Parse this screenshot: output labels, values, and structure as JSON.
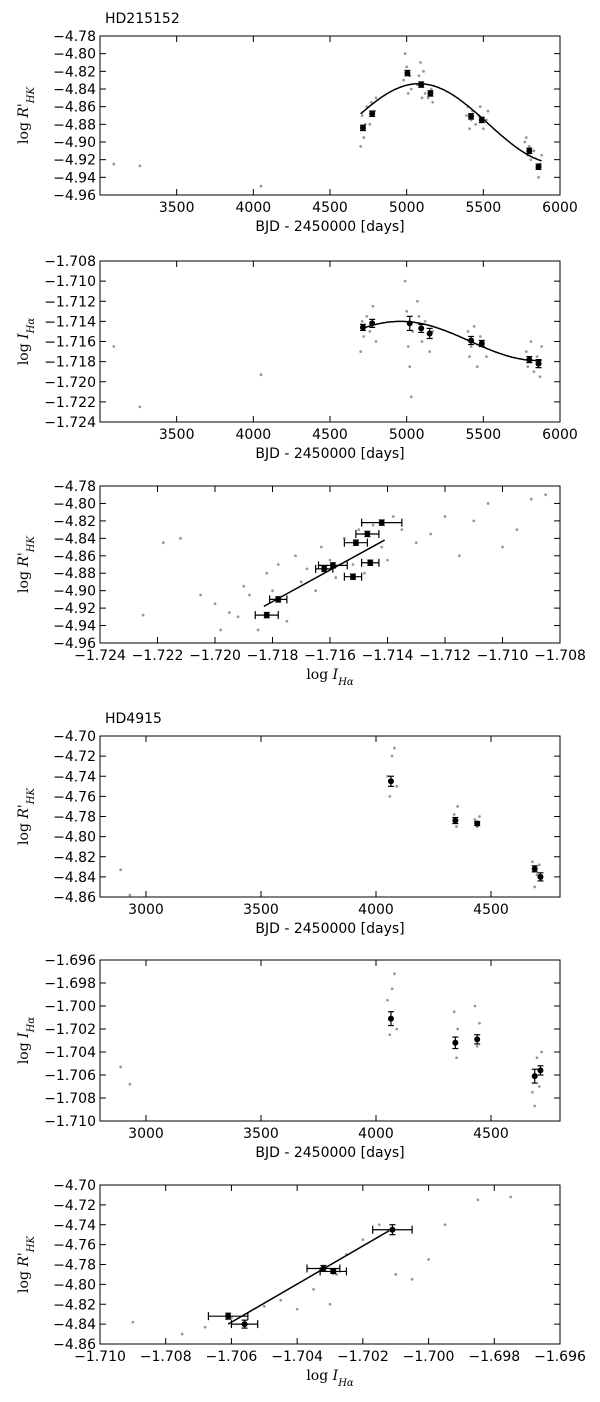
{
  "figure": {
    "star_labels": [
      "HD215152",
      "HD4915"
    ],
    "colors": {
      "points": "#999999",
      "binned": "#000000",
      "fit": "#000000"
    }
  },
  "chart_data": [
    {
      "type": "scatter",
      "star": "HD215152",
      "title": "",
      "xlabel": "BJD - 2450000 [days]",
      "ylabel": "log R'_HK",
      "xlim": [
        3000,
        6000
      ],
      "ylim": [
        -4.96,
        -4.78
      ],
      "xticks": [
        3500,
        4000,
        4500,
        5000,
        5500,
        6000
      ],
      "yticks": [
        -4.96,
        -4.94,
        -4.92,
        -4.9,
        -4.88,
        -4.86,
        -4.84,
        -4.82,
        -4.8,
        -4.78
      ],
      "binned": {
        "x": [
          4715,
          4775,
          5005,
          5095,
          5155,
          5420,
          5490,
          5800,
          5860
        ],
        "y": [
          -4.884,
          -4.868,
          -4.822,
          -4.835,
          -4.845,
          -4.871,
          -4.875,
          -4.91,
          -4.928
        ],
        "yerr": [
          0.003,
          0.003,
          0.003,
          0.003,
          0.003,
          0.003,
          0.003,
          0.003,
          0.003
        ]
      },
      "fit": {
        "type": "sinusoid",
        "x_range": [
          4700,
          5880
        ],
        "peak_x": 5080,
        "peak_y": -4.834,
        "min_y": -4.924,
        "period": 1800
      },
      "scatter": {
        "x": [
          3090,
          3260,
          4050,
          4700,
          4710,
          4720,
          4730,
          4740,
          4760,
          4770,
          4780,
          4790,
          4800,
          4980,
          4990,
          5000,
          5010,
          5020,
          5030,
          5070,
          5080,
          5090,
          5100,
          5110,
          5120,
          5140,
          5160,
          5170,
          5390,
          5400,
          5410,
          5420,
          5430,
          5450,
          5470,
          5480,
          5500,
          5520,
          5530,
          5770,
          5780,
          5790,
          5800,
          5810,
          5830,
          5850,
          5860,
          5870,
          5880
        ],
        "y": [
          -4.925,
          -4.927,
          -4.95,
          -4.905,
          -4.87,
          -4.895,
          -4.88,
          -4.86,
          -4.88,
          -4.855,
          -4.87,
          -4.865,
          -4.85,
          -4.83,
          -4.8,
          -4.815,
          -4.845,
          -4.825,
          -4.84,
          -4.835,
          -4.825,
          -4.81,
          -4.85,
          -4.82,
          -4.845,
          -4.85,
          -4.84,
          -4.855,
          -4.87,
          -4.86,
          -4.885,
          -4.875,
          -4.865,
          -4.88,
          -4.87,
          -4.86,
          -4.885,
          -4.875,
          -4.865,
          -4.9,
          -4.895,
          -4.915,
          -4.905,
          -4.92,
          -4.91,
          -4.93,
          -4.94,
          -4.925,
          -4.915
        ]
      }
    },
    {
      "type": "scatter",
      "star": "HD215152",
      "title": "",
      "xlabel": "BJD - 2450000 [days]",
      "ylabel": "log I_Hα",
      "xlim": [
        3000,
        6000
      ],
      "ylim": [
        -1.724,
        -1.708
      ],
      "xticks": [
        3500,
        4000,
        4500,
        5000,
        5500,
        6000
      ],
      "yticks": [
        -1.724,
        -1.722,
        -1.72,
        -1.718,
        -1.716,
        -1.714,
        -1.712,
        -1.71,
        -1.708
      ],
      "binned": {
        "x": [
          4715,
          4775,
          5020,
          5095,
          5150,
          5420,
          5490,
          5800,
          5860
        ],
        "y": [
          -1.7146,
          -1.7142,
          -1.7142,
          -1.7147,
          -1.7152,
          -1.7159,
          -1.7162,
          -1.7178,
          -1.7182
        ],
        "yerr": [
          0.0003,
          0.0004,
          0.0007,
          0.0004,
          0.0005,
          0.0004,
          0.0003,
          0.0003,
          0.0004
        ]
      },
      "fit": {
        "type": "sinusoid",
        "x_range": [
          4700,
          5880
        ],
        "peak_x": 4960,
        "peak_y": -1.714,
        "min_y": -1.7179,
        "period": 1800
      },
      "scatter": {
        "x": [
          3090,
          3260,
          4050,
          4700,
          4710,
          4720,
          4740,
          4760,
          4780,
          4800,
          4990,
          5000,
          5010,
          5020,
          5030,
          5040,
          5070,
          5080,
          5100,
          5120,
          5150,
          5170,
          5400,
          5410,
          5420,
          5440,
          5460,
          5480,
          5500,
          5520,
          5780,
          5790,
          5810,
          5830,
          5850,
          5870,
          5880
        ],
        "y": [
          -1.7165,
          -1.7225,
          -1.7193,
          -1.717,
          -1.714,
          -1.7155,
          -1.7135,
          -1.715,
          -1.7125,
          -1.716,
          -1.71,
          -1.713,
          -1.7165,
          -1.7185,
          -1.7215,
          -1.715,
          -1.712,
          -1.7135,
          -1.716,
          -1.714,
          -1.717,
          -1.715,
          -1.715,
          -1.7175,
          -1.7165,
          -1.7145,
          -1.7185,
          -1.7155,
          -1.7165,
          -1.7175,
          -1.717,
          -1.7185,
          -1.716,
          -1.719,
          -1.7175,
          -1.7195,
          -1.7165
        ]
      }
    },
    {
      "type": "scatter",
      "star": "HD215152",
      "title": "",
      "xlabel": "log I_Hα",
      "ylabel": "log R'_HK",
      "xlim": [
        -1.724,
        -1.708
      ],
      "ylim": [
        -4.96,
        -4.78
      ],
      "xticks": [
        -1.724,
        -1.722,
        -1.72,
        -1.718,
        -1.716,
        -1.714,
        -1.712,
        -1.71,
        -1.708
      ],
      "yticks": [
        -4.96,
        -4.94,
        -4.92,
        -4.9,
        -4.88,
        -4.86,
        -4.84,
        -4.82,
        -4.8,
        -4.78
      ],
      "binned": {
        "x": [
          -1.7142,
          -1.7147,
          -1.7151,
          -1.7152,
          -1.7159,
          -1.7162,
          -1.7178,
          -1.7182,
          -1.7146
        ],
        "y": [
          -4.822,
          -4.835,
          -4.845,
          -4.884,
          -4.871,
          -4.875,
          -4.91,
          -4.928,
          -4.868
        ],
        "xerr": [
          0.0007,
          0.0004,
          0.0004,
          0.0003,
          0.0005,
          0.0003,
          0.0003,
          0.0004,
          0.0003
        ],
        "yerr": [
          0.003,
          0.003,
          0.003,
          0.003,
          0.003,
          0.003,
          0.003,
          0.003,
          0.003
        ]
      },
      "fit": {
        "type": "linear",
        "x": [
          -1.7183,
          -1.7141
        ],
        "y": [
          -4.918,
          -4.842
        ]
      },
      "scatter": {
        "x": [
          -1.7225,
          -1.7218,
          -1.7212,
          -1.7205,
          -1.72,
          -1.7198,
          -1.7195,
          -1.7192,
          -1.719,
          -1.7188,
          -1.7185,
          -1.7182,
          -1.718,
          -1.7178,
          -1.7175,
          -1.7172,
          -1.717,
          -1.7168,
          -1.7165,
          -1.7163,
          -1.716,
          -1.7158,
          -1.7155,
          -1.7152,
          -1.715,
          -1.7148,
          -1.7145,
          -1.7142,
          -1.714,
          -1.7138,
          -1.7135,
          -1.713,
          -1.7125,
          -1.712,
          -1.7115,
          -1.711,
          -1.7105,
          -1.71,
          -1.7095,
          -1.709,
          -1.7085
        ],
        "y": [
          -4.928,
          -4.845,
          -4.84,
          -4.905,
          -4.915,
          -4.945,
          -4.925,
          -4.93,
          -4.895,
          -4.905,
          -4.945,
          -4.88,
          -4.9,
          -4.87,
          -4.935,
          -4.86,
          -4.89,
          -4.875,
          -4.9,
          -4.85,
          -4.865,
          -4.885,
          -4.84,
          -4.87,
          -4.83,
          -4.88,
          -4.825,
          -4.85,
          -4.865,
          -4.815,
          -4.83,
          -4.845,
          -4.835,
          -4.815,
          -4.86,
          -4.82,
          -4.8,
          -4.85,
          -4.83,
          -4.795,
          -4.79
        ]
      }
    },
    {
      "type": "scatter",
      "star": "HD4915",
      "title": "",
      "xlabel": "BJD - 2450000 [days]",
      "ylabel": "log R'_HK",
      "xlim": [
        2800,
        4800
      ],
      "ylim": [
        -4.86,
        -4.7
      ],
      "xticks": [
        3000,
        3500,
        4000,
        4500
      ],
      "yticks": [
        -4.86,
        -4.84,
        -4.82,
        -4.8,
        -4.78,
        -4.76,
        -4.74,
        -4.72,
        -4.7
      ],
      "binned": {
        "x": [
          4065,
          4345,
          4440,
          4690,
          4715
        ],
        "y": [
          -4.745,
          -4.784,
          -4.787,
          -4.832,
          -4.84
        ],
        "yerr": [
          0.005,
          0.003,
          0.002,
          0.003,
          0.004
        ]
      },
      "scatter": {
        "x": [
          2890,
          2930,
          4050,
          4060,
          4070,
          4080,
          4090,
          4340,
          4350,
          4355,
          4430,
          4440,
          4450,
          4680,
          4690,
          4700,
          4710,
          4720
        ],
        "y": [
          -4.833,
          -4.858,
          -4.74,
          -4.76,
          -4.72,
          -4.712,
          -4.75,
          -4.778,
          -4.79,
          -4.77,
          -4.783,
          -4.79,
          -4.78,
          -4.825,
          -4.85,
          -4.838,
          -4.828,
          -4.842
        ]
      }
    },
    {
      "type": "scatter",
      "star": "HD4915",
      "title": "",
      "xlabel": "BJD - 2450000 [days]",
      "ylabel": "log I_Hα",
      "xlim": [
        2800,
        4800
      ],
      "ylim": [
        -1.71,
        -1.696
      ],
      "xticks": [
        3000,
        3500,
        4000,
        4500
      ],
      "yticks": [
        -1.71,
        -1.708,
        -1.706,
        -1.704,
        -1.702,
        -1.7,
        -1.698,
        -1.696
      ],
      "binned": {
        "x": [
          4065,
          4345,
          4440,
          4690,
          4715
        ],
        "y": [
          -1.7011,
          -1.7032,
          -1.7029,
          -1.7061,
          -1.7056
        ],
        "yerr": [
          0.0006,
          0.0005,
          0.0004,
          0.0006,
          0.0004
        ]
      },
      "scatter": {
        "x": [
          2890,
          2930,
          4050,
          4060,
          4070,
          4080,
          4090,
          4340,
          4350,
          4355,
          4430,
          4440,
          4450,
          4680,
          4690,
          4700,
          4710,
          4720
        ],
        "y": [
          -1.7053,
          -1.7068,
          -1.6995,
          -1.7025,
          -1.6985,
          -1.6972,
          -1.702,
          -1.7005,
          -1.7045,
          -1.702,
          -1.7,
          -1.7035,
          -1.7015,
          -1.7075,
          -1.7087,
          -1.7045,
          -1.707,
          -1.704
        ]
      }
    },
    {
      "type": "scatter",
      "star": "HD4915",
      "title": "",
      "xlabel": "log I_Hα",
      "ylabel": "log R'_HK",
      "xlim": [
        -1.71,
        -1.696
      ],
      "ylim": [
        -4.86,
        -4.7
      ],
      "xticks": [
        -1.71,
        -1.708,
        -1.706,
        -1.704,
        -1.702,
        -1.7,
        -1.698,
        -1.696
      ],
      "yticks": [
        -4.86,
        -4.84,
        -4.82,
        -4.8,
        -4.78,
        -4.76,
        -4.74,
        -4.72,
        -4.7
      ],
      "binned": {
        "x": [
          -1.7011,
          -1.7032,
          -1.7029,
          -1.7061,
          -1.7056
        ],
        "y": [
          -4.745,
          -4.784,
          -4.787,
          -4.832,
          -4.84
        ],
        "xerr": [
          0.0006,
          0.0005,
          0.0004,
          0.0006,
          0.0004
        ],
        "yerr": [
          0.005,
          0.003,
          0.002,
          0.003,
          0.004
        ]
      },
      "fit": {
        "type": "linear",
        "x": [
          -1.7061,
          -1.7012
        ],
        "y": [
          -4.84,
          -4.746
        ]
      },
      "scatter": {
        "x": [
          -1.709,
          -1.7075,
          -1.7068,
          -1.706,
          -1.705,
          -1.7045,
          -1.704,
          -1.7035,
          -1.703,
          -1.7028,
          -1.7025,
          -1.702,
          -1.7015,
          -1.701,
          -1.7005,
          -1.7,
          -1.6995,
          -1.6985,
          -1.6975
        ],
        "y": [
          -4.838,
          -4.85,
          -4.843,
          -4.834,
          -4.822,
          -4.816,
          -4.825,
          -4.805,
          -4.82,
          -4.79,
          -4.77,
          -4.755,
          -4.74,
          -4.79,
          -4.795,
          -4.775,
          -4.74,
          -4.715,
          -4.712
        ]
      }
    }
  ]
}
